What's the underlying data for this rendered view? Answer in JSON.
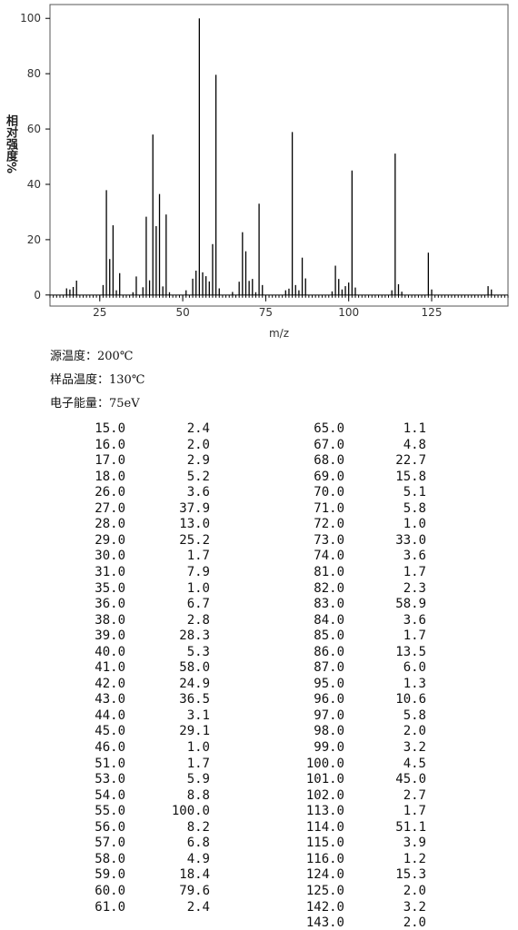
{
  "chart_data": {
    "type": "bar",
    "x_label": "m/z",
    "y_label": "相对强度%",
    "x": [
      15,
      16,
      17,
      18,
      26,
      27,
      28,
      29,
      30,
      31,
      35,
      36,
      38,
      39,
      40,
      41,
      42,
      43,
      44,
      45,
      46,
      51,
      53,
      54,
      55,
      56,
      57,
      58,
      59,
      60,
      61,
      65,
      67,
      68,
      69,
      70,
      71,
      72,
      73,
      74,
      81,
      82,
      83,
      84,
      85,
      86,
      87,
      95,
      96,
      97,
      98,
      99,
      100,
      101,
      102,
      113,
      114,
      115,
      116,
      124,
      125,
      142,
      143
    ],
    "x_labels": [
      "15.0",
      "16.0",
      "17.0",
      "18.0",
      "26.0",
      "27.0",
      "28.0",
      "29.0",
      "30.0",
      "31.0",
      "35.0",
      "36.0",
      "38.0",
      "39.0",
      "40.0",
      "41.0",
      "42.0",
      "43.0",
      "44.0",
      "45.0",
      "46.0",
      "51.0",
      "53.0",
      "54.0",
      "55.0",
      "56.0",
      "57.0",
      "58.0",
      "59.0",
      "60.0",
      "61.0",
      "65.0",
      "67.0",
      "68.0",
      "69.0",
      "70.0",
      "71.0",
      "72.0",
      "73.0",
      "74.0",
      "81.0",
      "82.0",
      "83.0",
      "84.0",
      "85.0",
      "86.0",
      "87.0",
      "95.0",
      "96.0",
      "97.0",
      "98.0",
      "99.0",
      "100.0",
      "101.0",
      "102.0",
      "113.0",
      "114.0",
      "115.0",
      "116.0",
      "124.0",
      "125.0",
      "142.0",
      "143.0"
    ],
    "values": [
      2.4,
      2.0,
      2.9,
      5.2,
      3.6,
      37.9,
      13.0,
      25.2,
      1.7,
      7.9,
      1.0,
      6.7,
      2.8,
      28.3,
      5.3,
      58.0,
      24.9,
      36.5,
      3.1,
      29.1,
      1.0,
      1.7,
      5.9,
      8.8,
      100.0,
      8.2,
      6.8,
      4.9,
      18.4,
      79.6,
      2.4,
      1.1,
      4.8,
      22.7,
      15.8,
      5.1,
      5.8,
      1.0,
      33.0,
      3.6,
      1.7,
      2.3,
      58.9,
      3.6,
      1.7,
      13.5,
      6.0,
      1.3,
      10.6,
      5.8,
      2.0,
      3.2,
      4.5,
      45.0,
      2.7,
      1.7,
      51.1,
      3.9,
      1.2,
      15.3,
      2.0,
      3.2,
      2.0
    ],
    "value_labels": [
      "2.4",
      "2.0",
      "2.9",
      "5.2",
      "3.6",
      "37.9",
      "13.0",
      "25.2",
      "1.7",
      "7.9",
      "1.0",
      "6.7",
      "2.8",
      "28.3",
      "5.3",
      "58.0",
      "24.9",
      "36.5",
      "3.1",
      "29.1",
      "1.0",
      "1.7",
      "5.9",
      "8.8",
      "100.0",
      "8.2",
      "6.8",
      "4.9",
      "18.4",
      "79.6",
      "2.4",
      "1.1",
      "4.8",
      "22.7",
      "15.8",
      "5.1",
      "5.8",
      "1.0",
      "33.0",
      "3.6",
      "1.7",
      "2.3",
      "58.9",
      "3.6",
      "1.7",
      "13.5",
      "6.0",
      "1.3",
      "10.6",
      "5.8",
      "2.0",
      "3.2",
      "4.5",
      "45.0",
      "2.7",
      "1.7",
      "51.1",
      "3.9",
      "1.2",
      "15.3",
      "2.0",
      "3.2",
      "2.0"
    ],
    "color": "#000000",
    "xlim": [
      10,
      148
    ],
    "xticks": [
      25,
      50,
      75,
      100,
      125
    ],
    "ylim": [
      -4,
      105
    ],
    "yticks": [
      0,
      20,
      40,
      60,
      80,
      100
    ]
  },
  "conditions": [
    "源温度：200℃",
    "样品温度：130℃",
    "电子能量：75eV"
  ]
}
